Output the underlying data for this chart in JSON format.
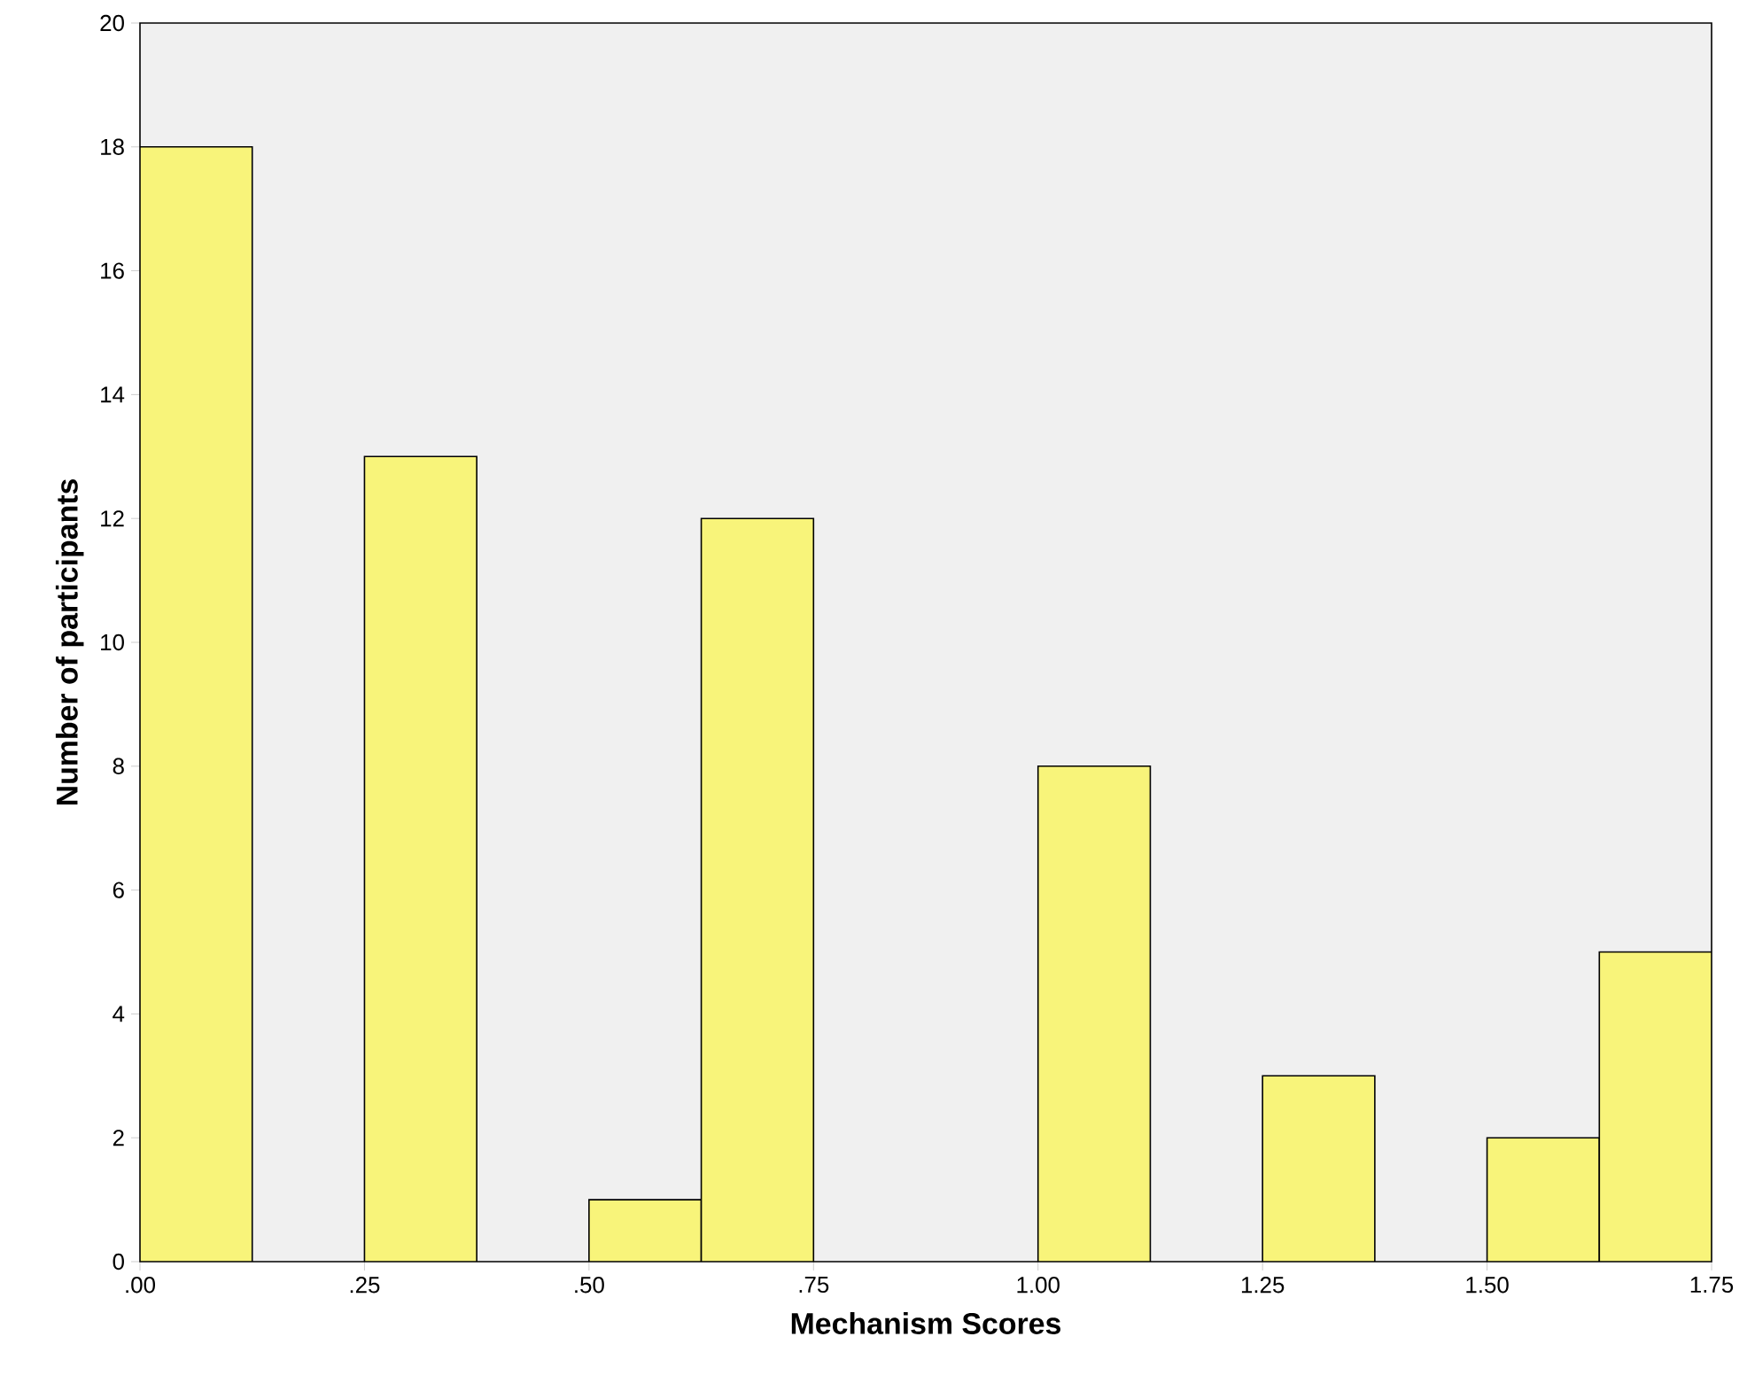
{
  "chart_data": {
    "type": "histogram",
    "xlabel": "Mechanism Scores",
    "ylabel": "Number of participants",
    "bins": [
      0,
      0.125,
      0.25,
      0.375,
      0.5,
      0.625,
      0.75,
      0.875,
      1.0,
      1.125,
      1.25,
      1.375,
      1.5,
      1.625,
      1.75
    ],
    "values": [
      18,
      0,
      13,
      0,
      1,
      12,
      0,
      0,
      8,
      0,
      3,
      0,
      2,
      5
    ],
    "color": "#f8f47a",
    "xlim": [
      0,
      1.75
    ],
    "xticks": [
      {
        "value": 0,
        "label": ".00"
      },
      {
        "value": 0.25,
        "label": ".25"
      },
      {
        "value": 0.5,
        "label": ".50"
      },
      {
        "value": 0.75,
        "label": ".75"
      },
      {
        "value": 1.0,
        "label": "1.00"
      },
      {
        "value": 1.25,
        "label": "1.25"
      },
      {
        "value": 1.5,
        "label": "1.50"
      },
      {
        "value": 1.75,
        "label": "1.75"
      }
    ],
    "ylim": [
      0,
      20
    ],
    "yticks": [
      0,
      2,
      4,
      6,
      8,
      10,
      12,
      14,
      16,
      18,
      20
    ],
    "grid": false
  }
}
